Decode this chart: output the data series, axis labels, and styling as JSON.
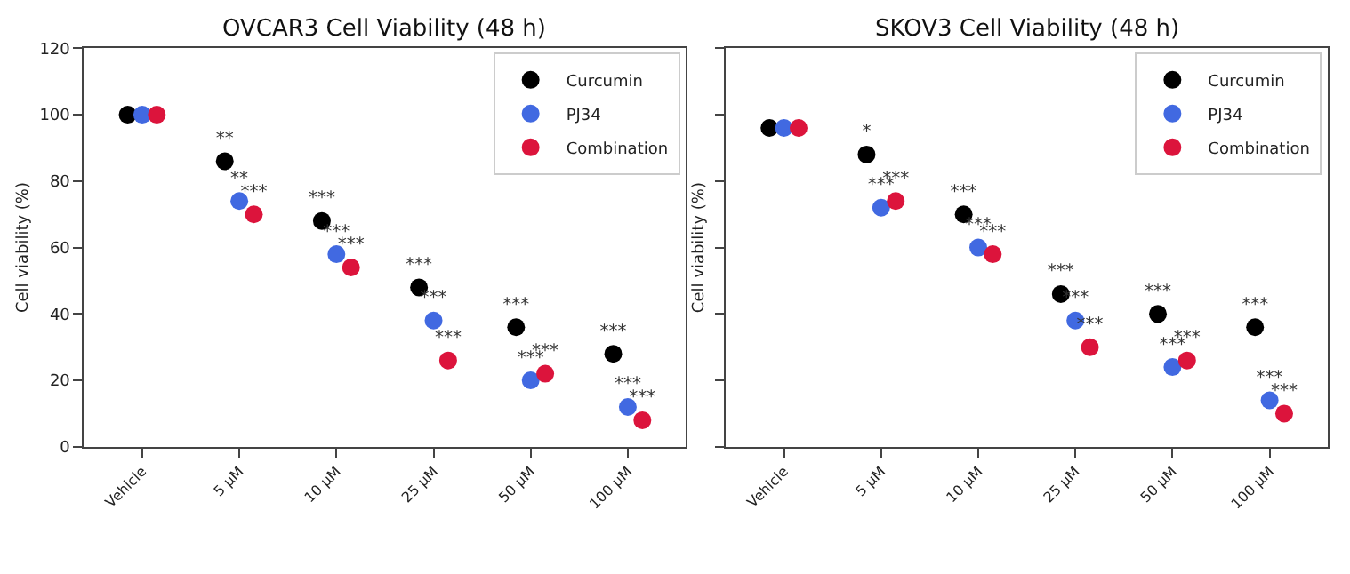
{
  "chart_data": [
    {
      "type": "scatter",
      "title": "OVCAR3 Cell Viability (48 h)",
      "ylabel": "Cell viability (%)",
      "categories": [
        "Vehicle",
        "5 µM",
        "10 µM",
        "25 µM",
        "50 µM",
        "100 µM"
      ],
      "ylim": [
        0,
        120
      ],
      "yticks": [
        0,
        20,
        40,
        60,
        80,
        100,
        120
      ],
      "legend": "top right",
      "marker": "circle",
      "series": [
        {
          "name": "Curcumin",
          "color": "#000000",
          "values": [
            100,
            86,
            68,
            48,
            36,
            28
          ],
          "value_labels": [
            null,
            "**",
            "***",
            "***",
            "***",
            "***"
          ]
        },
        {
          "name": "PJ34",
          "color": "#4169e1",
          "values": [
            100,
            74,
            58,
            38,
            20,
            12
          ],
          "value_labels": [
            null,
            "**",
            "***",
            "***",
            "***",
            "***"
          ]
        },
        {
          "name": "Combination",
          "color": "#dc143c",
          "values": [
            100,
            70,
            54,
            26,
            22,
            8
          ],
          "value_labels": [
            null,
            "***",
            "***",
            "***",
            "***",
            "***"
          ]
        }
      ]
    },
    {
      "type": "scatter",
      "title": "SKOV3 Cell Viability (48 h)",
      "ylabel": "Cell viability (%)",
      "categories": [
        "Vehicle",
        "5 µM",
        "10 µM",
        "25 µM",
        "50 µM",
        "100 µM"
      ],
      "ylim": [
        0,
        120
      ],
      "yticks": [
        0,
        20,
        40,
        60,
        80,
        100,
        120
      ],
      "tick_labels": "x",
      "legend": "top right",
      "marker": "circle",
      "series": [
        {
          "name": "Curcumin",
          "color": "#000000",
          "values": [
            96,
            88,
            70,
            46,
            40,
            36
          ],
          "value_labels": [
            null,
            "*",
            "***",
            "***",
            "***",
            "***"
          ]
        },
        {
          "name": "PJ34",
          "color": "#4169e1",
          "values": [
            96,
            72,
            60,
            38,
            24,
            14
          ],
          "value_labels": [
            null,
            "***",
            "***",
            "***",
            "***",
            "***"
          ]
        },
        {
          "name": "Combination",
          "color": "#dc143c",
          "values": [
            96,
            74,
            58,
            30,
            26,
            10
          ],
          "value_labels": [
            null,
            "***",
            "***",
            "***",
            "***",
            "***"
          ]
        }
      ]
    }
  ]
}
